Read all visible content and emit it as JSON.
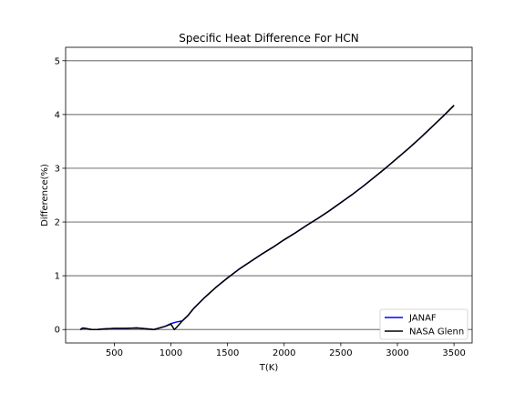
{
  "chart_data": {
    "type": "line",
    "title": "Specific Heat Difference For HCN",
    "xlabel": "T(K)",
    "ylabel": "Difference(%)",
    "xlim": [
      70,
      3660
    ],
    "ylim": [
      -0.25,
      5.25
    ],
    "xticks": [
      500,
      1000,
      1500,
      2000,
      2500,
      3000,
      3500
    ],
    "yticks": [
      0,
      1,
      2,
      3,
      4,
      5
    ],
    "grid": "horizontal",
    "legend_position": "lower-right",
    "colors": {
      "JANAF": "#0000ff",
      "NASA Glenn": "#000000",
      "grid": "#808080"
    },
    "series": [
      {
        "name": "JANAF",
        "x": [
          200,
          220,
          250,
          300,
          350,
          400,
          500,
          600,
          700,
          800,
          850,
          900,
          950,
          1000,
          1050,
          1100,
          1150,
          1200,
          1300,
          1400,
          1500,
          1600,
          1700,
          1800,
          1900,
          2000,
          2100,
          2200,
          2300,
          2400,
          2500,
          2600,
          2700,
          2800,
          2900,
          3000,
          3100,
          3200,
          3300,
          3400,
          3500
        ],
        "y": [
          0.0,
          0.03,
          0.02,
          0.0,
          0.0,
          0.01,
          0.02,
          0.02,
          0.03,
          0.01,
          0.0,
          0.03,
          0.06,
          0.11,
          0.14,
          0.16,
          0.26,
          0.39,
          0.6,
          0.79,
          0.96,
          1.12,
          1.26,
          1.4,
          1.53,
          1.67,
          1.8,
          1.94,
          2.07,
          2.21,
          2.36,
          2.51,
          2.67,
          2.84,
          3.01,
          3.19,
          3.37,
          3.56,
          3.76,
          3.96,
          4.17
        ]
      },
      {
        "name": "NASA Glenn",
        "x": [
          200,
          220,
          250,
          300,
          350,
          400,
          500,
          600,
          700,
          800,
          850,
          900,
          950,
          1000,
          1030,
          1050,
          1100,
          1150,
          1200,
          1300,
          1400,
          1500,
          1600,
          1700,
          1800,
          1900,
          2000,
          2100,
          2200,
          2300,
          2400,
          2500,
          2600,
          2700,
          2800,
          2900,
          3000,
          3100,
          3200,
          3300,
          3400,
          3500
        ],
        "y": [
          0.0,
          0.02,
          0.02,
          0.0,
          0.0,
          0.01,
          0.02,
          0.02,
          0.03,
          0.01,
          0.0,
          0.03,
          0.06,
          0.1,
          0.0,
          0.04,
          0.16,
          0.26,
          0.39,
          0.6,
          0.79,
          0.96,
          1.12,
          1.26,
          1.4,
          1.53,
          1.67,
          1.8,
          1.94,
          2.07,
          2.21,
          2.36,
          2.51,
          2.67,
          2.84,
          3.01,
          3.19,
          3.37,
          3.56,
          3.76,
          3.96,
          4.17
        ]
      }
    ]
  }
}
